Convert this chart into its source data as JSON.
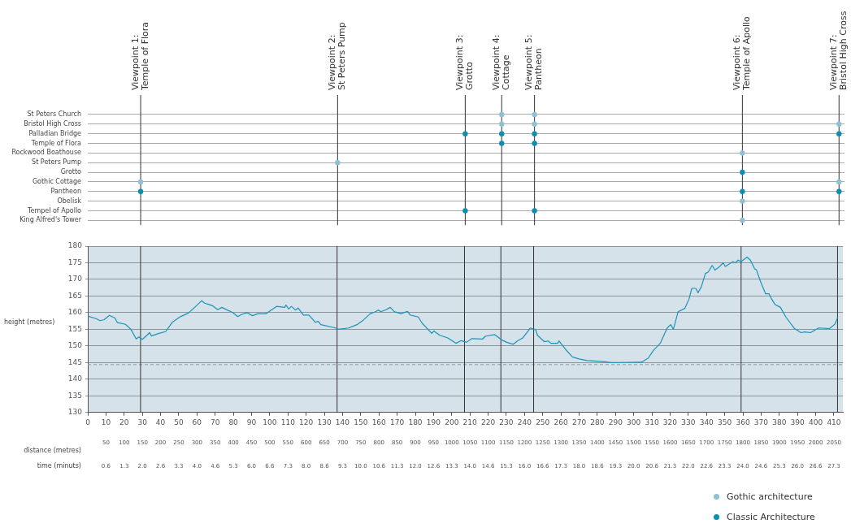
{
  "chart_data": [
    {
      "type": "scatter",
      "orientation": "horizontal",
      "xlim": [
        0,
        415
      ],
      "categories": [
        "St Peters Church",
        "Bristol High Cross",
        "Palladian Bridge",
        "Temple of Flora",
        "Rockwood Boathouse",
        "St Peters Pump",
        "Grotto",
        "Gothic Cottage",
        "Pantheon",
        "Obelisk",
        "Tempel of Apollo",
        "King Alfred's Tower"
      ],
      "tick_labels": "y",
      "grid": "y",
      "legend": "bottom right",
      "marker": "circle",
      "ref_lines": [
        {
          "axis": "x",
          "value": 29,
          "label": "Viewpoint 1:\nTemple of Flora",
          "color": "#333333"
        },
        {
          "axis": "x",
          "value": 137,
          "label": "Viewpoint 2:\nSt Peters Pump",
          "color": "#333333"
        },
        {
          "axis": "x",
          "value": 207,
          "label": "Viewpoint 3:\nGrotto",
          "color": "#333333"
        },
        {
          "axis": "x",
          "value": 227,
          "label": "Viewpoint 4:\nCottage",
          "color": "#333333"
        },
        {
          "axis": "x",
          "value": 245,
          "label": "Viewpoint 5:\nPantheon",
          "color": "#333333"
        },
        {
          "axis": "x",
          "value": 359,
          "label": "Viewpoint 6:\nTemple of Apollo",
          "color": "#333333"
        },
        {
          "axis": "x",
          "value": 412,
          "label": "Viewpoint 7:\nBristol High Cross",
          "color": "#333333"
        }
      ],
      "series": [
        {
          "name": "Gothic architecture",
          "color": "#8fc1d4",
          "values": [
            227,
            227,
            null,
            null,
            null,
            137,
            null,
            29,
            null,
            359,
            null,
            359
          ]
        },
        {
          "color": "#8fc1d4",
          "values": [
            245,
            245,
            null,
            null,
            null,
            null,
            null,
            412,
            null,
            null,
            null,
            null
          ]
        },
        {
          "name": "Classic Architecture",
          "color": "#0b8fae",
          "values": [
            null,
            null,
            207,
            227,
            null,
            null,
            359,
            null,
            29,
            null,
            207,
            null
          ]
        },
        {
          "color": "#0b8fae",
          "values": [
            null,
            null,
            227,
            245,
            null,
            null,
            null,
            null,
            359,
            null,
            245,
            null
          ]
        },
        {
          "color": "#0b8fae",
          "values": [
            null,
            null,
            245,
            null,
            null,
            null,
            null,
            null,
            412,
            null,
            null,
            null
          ]
        },
        {
          "color": "#0b8fae",
          "values": [
            null,
            null,
            412,
            null,
            null,
            null,
            null,
            null,
            null,
            null,
            null,
            null
          ]
        },
        {
          "color": "#8fc1d4",
          "values": [
            null,
            412,
            null,
            null,
            359,
            null,
            null,
            null,
            null,
            null,
            null,
            null
          ]
        }
      ]
    },
    {
      "type": "line",
      "ylabel": "height (metres)",
      "x2label": "distance (metres)",
      "xlim": [
        0,
        415
      ],
      "ylim": [
        130,
        180
      ],
      "x2lim": [
        0,
        2075
      ],
      "xticks": [
        0,
        10,
        20,
        30,
        40,
        50,
        60,
        70,
        80,
        90,
        100,
        110,
        120,
        130,
        140,
        150,
        160,
        170,
        180,
        190,
        200,
        210,
        220,
        230,
        240,
        250,
        260,
        270,
        280,
        290,
        300,
        310,
        320,
        330,
        340,
        350,
        360,
        370,
        380,
        390,
        400,
        410
      ],
      "yticks": [
        130,
        135,
        140,
        145,
        150,
        155,
        160,
        165,
        170,
        175,
        180
      ],
      "x2ticks": [
        50,
        100,
        150,
        200,
        250,
        300,
        350,
        400,
        450,
        500,
        550,
        600,
        650,
        700,
        750,
        800,
        850,
        900,
        950,
        1000,
        1050,
        1100,
        1150,
        1200,
        1250,
        1300,
        1350,
        1400,
        1450,
        1500,
        1550,
        1600,
        1650,
        1700,
        1750,
        1800,
        1850,
        1900,
        1950,
        2000,
        2050
      ],
      "annotations": [
        "time (minuts)",
        "0.6",
        "1.3",
        "2.0",
        "2.6",
        "3.3",
        "4.0",
        "4.6",
        "5.3",
        "6.0",
        "6.6",
        "7.3",
        "8.0",
        "8.6",
        "9.3",
        "10.0",
        "10.6",
        "11.3",
        "12.0",
        "12.6",
        "13.3",
        "14.0",
        "14.6",
        "15.3",
        "16.0",
        "16.6",
        "17.3",
        "18.0",
        "18.6",
        "19.3",
        "20.0",
        "20.6",
        "21.3",
        "22.0",
        "22.6",
        "23.3",
        "24.0",
        "24.6",
        "25.3",
        "26.0",
        "26.6",
        "27.3"
      ],
      "grid": "y",
      "marker": "none",
      "bands": [
        {
          "axis": "y",
          "from": 130,
          "to": 180,
          "color": "#d5e2ea"
        }
      ],
      "ref_lines": [
        {
          "axis": "y",
          "value": 144.4,
          "color": "#8a9aa6",
          "line_style": "dashed"
        },
        {
          "axis": "x",
          "value": 29,
          "color": "#333333"
        },
        {
          "axis": "x",
          "value": 137,
          "color": "#333333"
        },
        {
          "axis": "x",
          "value": 207,
          "color": "#333333"
        },
        {
          "axis": "x",
          "value": 227,
          "color": "#333333"
        },
        {
          "axis": "x",
          "value": 245,
          "color": "#333333"
        },
        {
          "axis": "x",
          "value": 359,
          "color": "#333333"
        },
        {
          "axis": "x",
          "value": 412,
          "color": "#333333"
        }
      ],
      "series": [
        {
          "color": "#1a93b8",
          "x": [
            0,
            4.5,
            6.8,
            9,
            11.9,
            14.9,
            16.3,
            20.7,
            23.7,
            26.6,
            28.1,
            30,
            32.5,
            34,
            35,
            39.1,
            42.8,
            46.4,
            50.9,
            55.3,
            59.7,
            62.6,
            64.1,
            66.3,
            68.5,
            71.4,
            73.6,
            76.6,
            79.5,
            82.4,
            84.6,
            87.6,
            90.5,
            93.5,
            97.9,
            100.1,
            103.8,
            108.2,
            108.9,
            110.4,
            111.9,
            114.1,
            115.6,
            118.5,
            121.5,
            125.1,
            126.6,
            128.1,
            136.2,
            137.6,
            143.4,
            147.9,
            151.5,
            155.2,
            158.1,
            159.6,
            161,
            164,
            166.2,
            168.4,
            172.1,
            175.7,
            177.2,
            181.6,
            183.8,
            189,
            190.2,
            193.4,
            197.8,
            202.3,
            205.2,
            208.1,
            211.1,
            217,
            218.4,
            223.6,
            227.2,
            230.2,
            233.8,
            236.1,
            239,
            242,
            243.1,
            246.1,
            247.1,
            250.8,
            253,
            254.5,
            258.2,
            258.9,
            263.3,
            266.3,
            269.9,
            274.4,
            283.2,
            287.7,
            304.2,
            307.9,
            310.9,
            314.6,
            318.4,
            320.3,
            321.8,
            324.4,
            328.1,
            330.4,
            331.9,
            334.1,
            335.3,
            337.1,
            339.4,
            340.9,
            343.1,
            344.6,
            346.9,
            349.1,
            350.3,
            352.1,
            354.4,
            355.9,
            357.4,
            358.9,
            362.3,
            364.1,
            366.4,
            367.4,
            369.8,
            372.4,
            374.3,
            375.8,
            377.6,
            380.6,
            383.6,
            388.2,
            391.9,
            394.1,
            397.1,
            401.6,
            407.6,
            410.6,
            412
          ],
          "values": [
            159,
            158.2,
            157.6,
            157.9,
            159.2,
            158.4,
            157,
            156.5,
            155,
            152.1,
            152.7,
            152,
            153.2,
            154,
            153,
            153.8,
            154.3,
            157.1,
            158.8,
            159.9,
            162.1,
            163.6,
            162.9,
            162.5,
            162.1,
            160.9,
            161.6,
            160.8,
            160.1,
            158.8,
            159.5,
            160,
            159.1,
            159.7,
            159.7,
            160.5,
            161.9,
            161.6,
            162.3,
            161.1,
            161.9,
            160.8,
            161.4,
            159.3,
            159.3,
            157.1,
            157.4,
            156.4,
            155.4,
            155,
            155.4,
            156.4,
            157.8,
            159.7,
            160.3,
            160.8,
            160.3,
            160.9,
            161.6,
            160.3,
            159.7,
            160.4,
            159.3,
            158.7,
            156.8,
            153.8,
            154.5,
            153.2,
            152.4,
            150.8,
            151.6,
            151.1,
            152.2,
            152.1,
            152.9,
            153.4,
            151.9,
            151.1,
            150.5,
            151.5,
            152.4,
            154.5,
            155.4,
            154.9,
            153.2,
            151.3,
            151.5,
            150.8,
            150.8,
            151.5,
            148.5,
            146.7,
            146.1,
            145.6,
            145.3,
            145,
            145.1,
            146.3,
            148.7,
            150.8,
            155.4,
            156.4,
            155,
            160.3,
            161.3,
            164.1,
            167.3,
            167.3,
            166,
            167.7,
            171.8,
            172.2,
            174.2,
            172.8,
            173.7,
            175,
            173.9,
            174.5,
            175.3,
            175,
            175.8,
            175.3,
            176.7,
            175.8,
            173.2,
            172.9,
            169.2,
            165.7,
            165.7,
            164.1,
            162.5,
            161.6,
            158.7,
            155.3,
            154,
            154.2,
            154,
            155.4,
            155.2,
            156.6,
            158.4
          ]
        }
      ]
    }
  ]
}
